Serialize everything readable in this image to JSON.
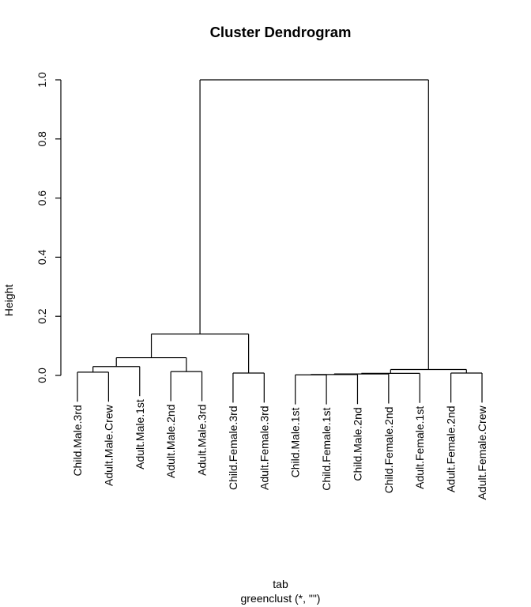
{
  "figure": {
    "title": "Cluster Dendrogram",
    "ylabel": "Height",
    "xlabel_line1": "tab",
    "xlabel_line2": "greenclust (*, \"\")",
    "background_color": "#ffffff",
    "line_color": "#000000",
    "text_color": "#000000"
  },
  "chart_data": {
    "type": "dendrogram",
    "title": "Cluster Dendrogram",
    "ylabel": "Height",
    "xlabel_lines": [
      "tab",
      "greenclust (*, \"\")"
    ],
    "ylim": [
      0.0,
      1.0
    ],
    "yticks": [
      0.0,
      0.2,
      0.4,
      0.6,
      0.8,
      1.0
    ],
    "ytick_labels": [
      "0.0",
      "0.2",
      "0.4",
      "0.6",
      "0.8",
      "1.0"
    ],
    "grid": false,
    "legend": "none",
    "hang": 0.1,
    "leaves": [
      "Child.Male.3rd",
      "Adult.Male.Crew",
      "Adult.Male.1st",
      "Adult.Male.2nd",
      "Adult.Male.3rd",
      "Child.Female.3rd",
      "Adult.Female.3rd",
      "Child.Male.1st",
      "Child.Female.1st",
      "Child.Male.2nd",
      "Child.Female.2nd",
      "Adult.Female.1st",
      "Adult.Female.2nd",
      "Adult.Female.Crew"
    ],
    "merges": [
      {
        "id": "M0",
        "children": [
          "L0",
          "L1"
        ],
        "height": 0.011
      },
      {
        "id": "M1",
        "children": [
          "M0",
          "L2"
        ],
        "height": 0.03
      },
      {
        "id": "M2",
        "children": [
          "L3",
          "L4"
        ],
        "height": 0.013
      },
      {
        "id": "M3",
        "children": [
          "M1",
          "M2"
        ],
        "height": 0.06
      },
      {
        "id": "M4",
        "children": [
          "L5",
          "L6"
        ],
        "height": 0.008
      },
      {
        "id": "M5",
        "children": [
          "M3",
          "M4"
        ],
        "height": 0.14
      },
      {
        "id": "M6",
        "children": [
          "L7",
          "L8"
        ],
        "height": 0.002
      },
      {
        "id": "M7",
        "children": [
          "M6",
          "L9"
        ],
        "height": 0.003
      },
      {
        "id": "M8",
        "children": [
          "M7",
          "L10"
        ],
        "height": 0.005
      },
      {
        "id": "M9",
        "children": [
          "M8",
          "L11"
        ],
        "height": 0.007
      },
      {
        "id": "M10",
        "children": [
          "L12",
          "L13"
        ],
        "height": 0.008
      },
      {
        "id": "M11",
        "children": [
          "M9",
          "M10"
        ],
        "height": 0.02
      },
      {
        "id": "M12",
        "children": [
          "M5",
          "M11"
        ],
        "height": 1.0
      }
    ]
  }
}
